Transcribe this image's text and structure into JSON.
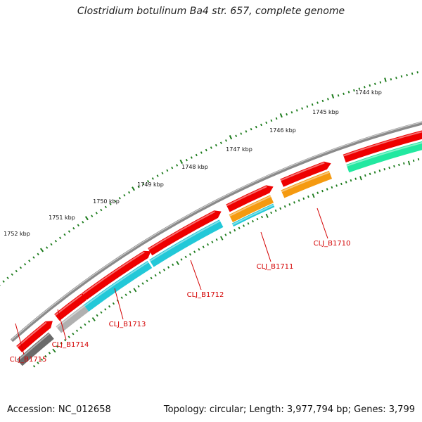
{
  "title": "Clostridium botulinum Ba4 str. 657, complete genome",
  "accession": "Accession: NC_012658",
  "topology": "Topology: circular; Length: 3,977,794 bp; Genes: 3,799",
  "colors": {
    "backbone": "#8a8a8a",
    "ticks": "#1a7a1a",
    "cds": "#ee0000",
    "label": "#d40000",
    "gene_cyan": "#22c8d8",
    "gene_orange": "#f59a10",
    "gene_green": "#22e8a0",
    "gene_gray": "#b0b0b0",
    "gene_dark": "#6a6a6a"
  },
  "kbp_labels": [
    "1744 kbp",
    "1745 kbp",
    "1746 kbp",
    "1747 kbp",
    "1748 kbp",
    "1749 kbp",
    "1750 kbp",
    "1751 kbp",
    "1752 kbp"
  ],
  "genes": [
    {
      "label": "CLJ_B1710",
      "color": "gene_orange"
    },
    {
      "label": "CLJ_B1711",
      "color": "gene_cyan"
    },
    {
      "label": "CLJ_B1712",
      "color": "gene_cyan"
    },
    {
      "label": "CLJ_B1713",
      "color": "gene_cyan"
    },
    {
      "label": "CLJ_B1714",
      "color": "gene_gray"
    },
    {
      "label": "CLJ_B1715",
      "color": "gene_dark"
    }
  ]
}
